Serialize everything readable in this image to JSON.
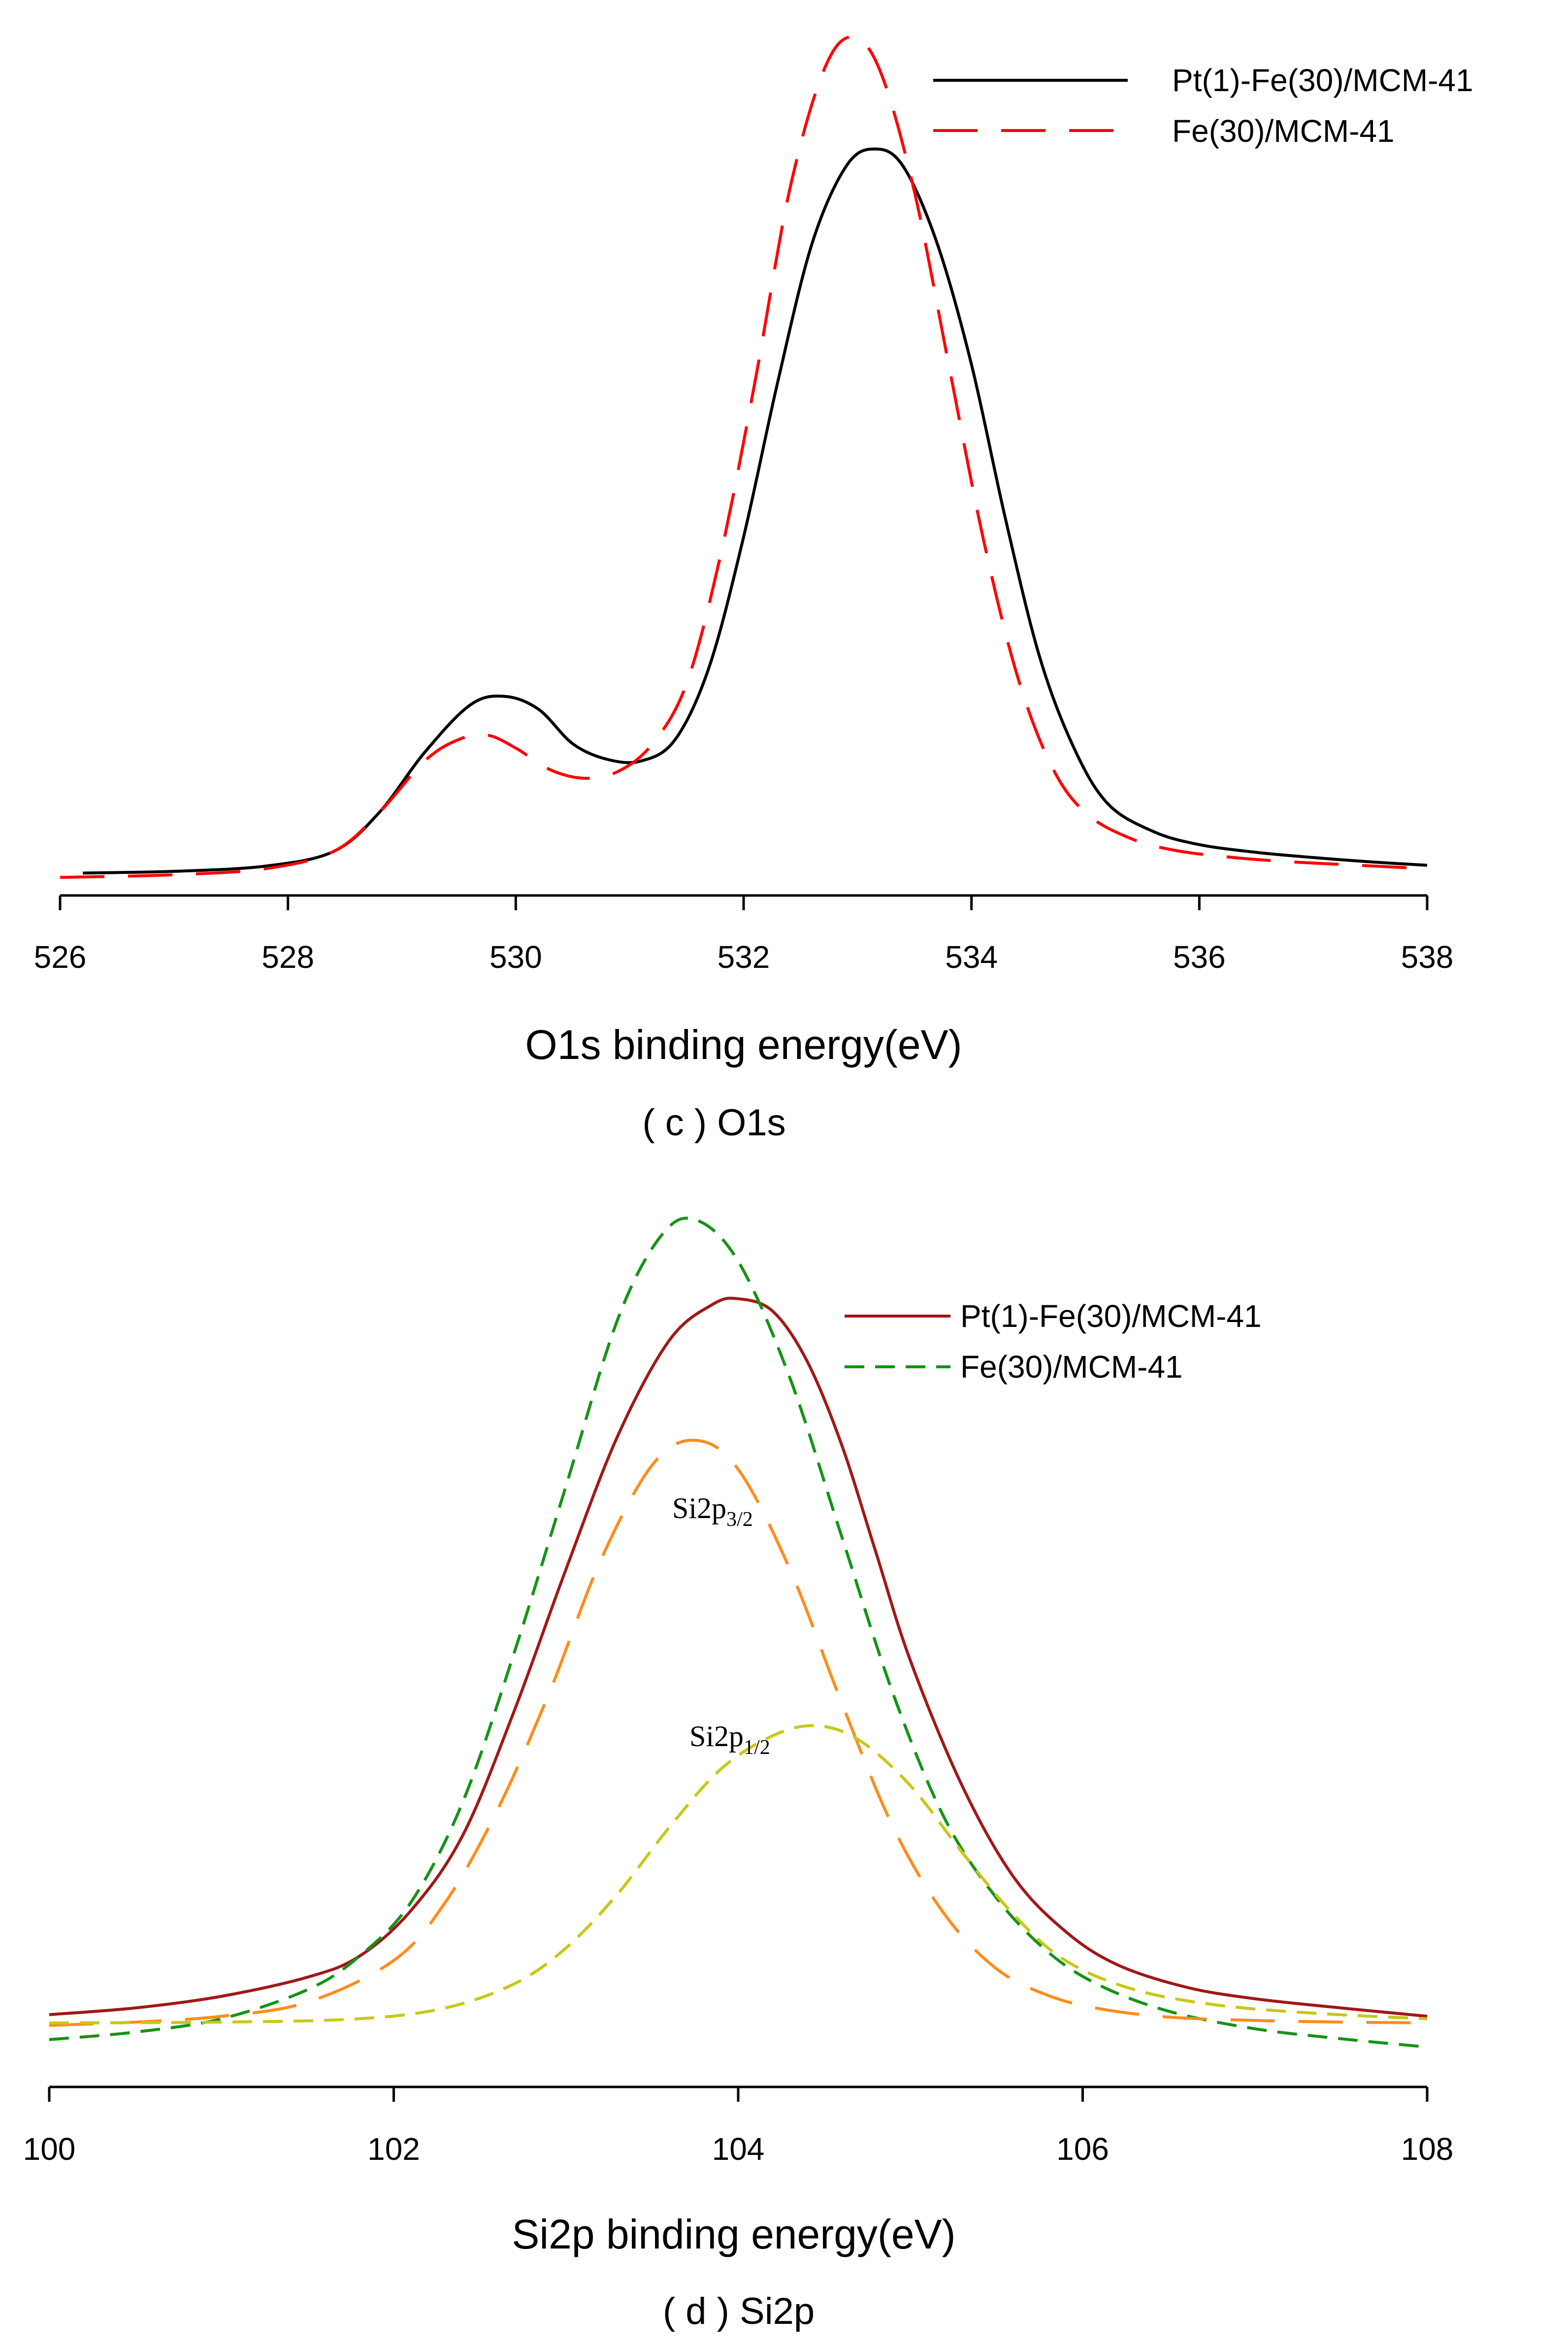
{
  "chart_data": [
    {
      "type": "line",
      "id": "o1s",
      "xlabel": "O1s binding energy(eV)",
      "caption": "( c ) O1s",
      "xlim": [
        526,
        538
      ],
      "x_ticks": [
        "526",
        "528",
        "530",
        "532",
        "534",
        "536",
        "538"
      ],
      "ylim": [
        0,
        100
      ],
      "legend": "top-right",
      "series": [
        {
          "name": "Pt(1)-Fe(30)/MCM-41",
          "color": "#000000",
          "dash": "solid",
          "x": [
            526.2,
            527.0,
            527.8,
            528.4,
            528.8,
            529.2,
            529.6,
            529.9,
            530.2,
            530.5,
            530.8,
            531.1,
            531.4,
            531.7,
            532.0,
            532.3,
            532.6,
            532.9,
            533.15,
            533.4,
            533.7,
            534.0,
            534.3,
            534.6,
            534.9,
            535.2,
            535.6,
            536.0,
            536.5,
            537.0,
            537.5,
            538.0
          ],
          "y": [
            1.0,
            1.2,
            1.8,
            3.5,
            8.0,
            15.0,
            20.5,
            21.5,
            20.0,
            16.0,
            14.2,
            14.0,
            16.5,
            25.0,
            40.0,
            58.0,
            74.0,
            83.0,
            85.0,
            83.0,
            74.0,
            60.0,
            42.0,
            26.0,
            15.5,
            9.0,
            5.8,
            4.3,
            3.4,
            2.8,
            2.3,
            1.9
          ]
        },
        {
          "name": "Fe(30)/MCM-41",
          "color": "#ff0000",
          "dash": "long-dash",
          "x": [
            526.0,
            527.0,
            527.8,
            528.4,
            528.8,
            529.2,
            529.5,
            529.75,
            530.0,
            530.3,
            530.6,
            530.9,
            531.2,
            531.5,
            531.8,
            532.1,
            532.4,
            532.7,
            532.95,
            533.2,
            533.5,
            533.8,
            534.1,
            534.4,
            534.7,
            535.0,
            535.4,
            535.8,
            536.3,
            536.8,
            537.4,
            538.0
          ],
          "y": [
            0.5,
            0.8,
            1.5,
            3.5,
            8.0,
            14.0,
            16.5,
            17.0,
            15.5,
            13.0,
            12.0,
            12.8,
            16.0,
            23.0,
            38.0,
            58.0,
            80.0,
            94.0,
            98.0,
            94.0,
            80.0,
            60.0,
            40.0,
            24.0,
            13.5,
            8.0,
            5.0,
            3.6,
            2.8,
            2.3,
            1.9,
            1.5
          ]
        }
      ]
    },
    {
      "type": "line",
      "id": "si2p",
      "xlabel": "Si2p binding energy(eV)",
      "caption": "( d ) Si2p",
      "xlim": [
        100,
        108
      ],
      "x_ticks": [
        "100",
        "102",
        "104",
        "106",
        "108"
      ],
      "ylim": [
        0,
        100
      ],
      "legend": "top-right",
      "series": [
        {
          "name": "Pt(1)-Fe(30)/MCM-41",
          "color": "#a01818",
          "dash": "solid",
          "x": [
            100.0,
            100.5,
            101.0,
            101.5,
            101.8,
            102.1,
            102.4,
            102.7,
            103.0,
            103.3,
            103.6,
            103.85,
            104.0,
            104.2,
            104.4,
            104.6,
            104.8,
            105.0,
            105.3,
            105.6,
            105.9,
            106.2,
            106.6,
            107.0,
            107.5,
            108.0
          ],
          "y": [
            6.5,
            7.3,
            8.7,
            11.0,
            13.5,
            19.0,
            28.0,
            43.0,
            60.0,
            76.0,
            87.5,
            91.8,
            92.5,
            91.0,
            85.0,
            75.0,
            62.0,
            49.0,
            34.0,
            23.0,
            16.5,
            12.5,
            9.8,
            8.4,
            7.3,
            6.3
          ]
        },
        {
          "name": "Fe(30)/MCM-41",
          "color": "#149414",
          "dash": "short-dash",
          "x": [
            100.0,
            100.5,
            101.0,
            101.5,
            101.8,
            102.1,
            102.4,
            102.7,
            103.0,
            103.3,
            103.55,
            103.75,
            104.0,
            104.3,
            104.6,
            104.9,
            105.2,
            105.5,
            105.8,
            106.1,
            106.5,
            107.0,
            107.5,
            108.0
          ],
          "y": [
            3.5,
            4.4,
            6.0,
            9.5,
            13.5,
            20.0,
            32.0,
            50.0,
            70.0,
            90.0,
            100.0,
            102.0,
            97.0,
            83.0,
            64.0,
            45.0,
            30.0,
            20.5,
            14.0,
            10.0,
            6.9,
            4.8,
            3.6,
            2.6
          ]
        },
        {
          "name": "Si2p3/2",
          "color": "#ff8c1a",
          "dash": "long-dash",
          "x": [
            100.0,
            100.5,
            101.0,
            101.5,
            102.0,
            102.3,
            102.6,
            102.9,
            103.2,
            103.5,
            103.75,
            104.0,
            104.3,
            104.6,
            104.9,
            105.2,
            105.5,
            105.8,
            106.1,
            106.5,
            107.0,
            107.5,
            108.0
          ],
          "y": [
            5.2,
            5.6,
            6.3,
            8.0,
            13.0,
            20.0,
            31.0,
            45.0,
            61.0,
            72.5,
            75.5,
            72.0,
            60.0,
            44.0,
            29.0,
            18.5,
            12.0,
            8.8,
            7.2,
            6.2,
            5.8,
            5.6,
            5.5
          ]
        },
        {
          "name": "Si2p1/2",
          "color": "#c8c814",
          "dash": "short-dash",
          "x": [
            100.0,
            101.0,
            101.8,
            102.3,
            102.7,
            103.0,
            103.3,
            103.6,
            103.9,
            104.2,
            104.45,
            104.7,
            105.0,
            105.3,
            105.6,
            105.9,
            106.3,
            106.8,
            107.4,
            108.0
          ],
          "y": [
            5.5,
            5.6,
            6.0,
            7.3,
            10.2,
            14.5,
            21.0,
            29.0,
            36.0,
            40.0,
            41.2,
            39.5,
            34.0,
            26.0,
            18.5,
            13.0,
            9.5,
            7.6,
            6.6,
            6.0
          ]
        }
      ],
      "annotations": [
        {
          "label": "Si2p",
          "sub": "3/2",
          "x": 103.75
        },
        {
          "label": "Si2p",
          "sub": "1/2",
          "x": 104.45
        }
      ]
    }
  ]
}
